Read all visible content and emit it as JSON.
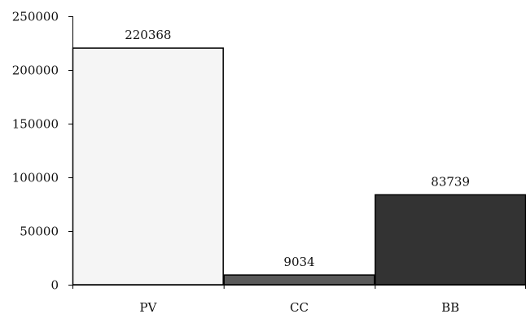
{
  "chart_data": {
    "type": "bar",
    "categories": [
      "PV",
      "CC",
      "BB"
    ],
    "values": [
      220368,
      9034,
      83739
    ],
    "data_labels": [
      "220368",
      "9034",
      "83739"
    ],
    "colors": [
      "#f5f5f5",
      "#595959",
      "#333333"
    ],
    "ylim": [
      0,
      250000
    ],
    "yticks": [
      0,
      50000,
      100000,
      150000,
      200000,
      250000
    ],
    "ytick_labels": [
      "0",
      "50000",
      "100000",
      "150000",
      "200000",
      "250000"
    ],
    "grid": false,
    "legend": "none",
    "title": "",
    "xlabel": "",
    "ylabel": ""
  }
}
